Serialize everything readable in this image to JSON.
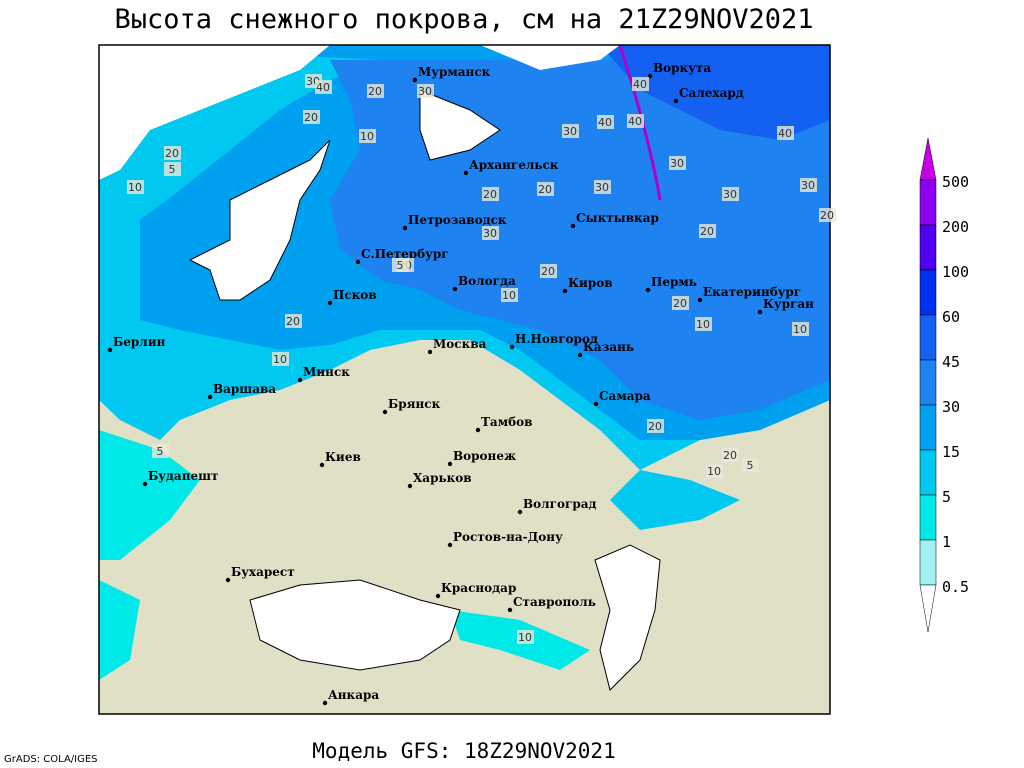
{
  "header": {
    "title": "Высота снежного покрова, см на 21Z29NOV2021"
  },
  "map": {
    "cities": [
      "Мурманск",
      "Воркута",
      "Салехард",
      "Архангельск",
      "Сыктывкар",
      "Петрозаводск",
      "С.Петербург",
      "Вологда",
      "Киров",
      "Пермь",
      "Екатеринбург",
      "Курган",
      "Псков",
      "Н.Новгород",
      "Казань",
      "Берлин",
      "Москва",
      "Минск",
      "Варшава",
      "Самара",
      "Брянск",
      "Тамбов",
      "Киев",
      "Воронеж",
      "Будапешт",
      "Харьков",
      "Волгоград",
      "Ростов-на-Дону",
      "Бухарест",
      "Краснодар",
      "Ставрополь",
      "Анкара"
    ],
    "contour_labels": [
      30,
      40,
      20,
      30,
      20,
      30,
      40,
      40,
      40,
      10,
      20,
      20,
      5,
      10,
      20,
      30,
      30,
      30,
      40,
      30,
      20,
      30,
      20,
      10,
      20,
      20,
      10,
      20,
      10,
      20,
      5,
      10,
      20,
      20,
      5,
      10,
      5,
      10
    ]
  },
  "legend": {
    "levels": [
      500,
      200,
      100,
      60,
      45,
      30,
      15,
      5,
      1,
      0.5
    ]
  },
  "footer": {
    "model": "Модель GFS: 18Z29NOV2021",
    "credit": "GrADS: COLA/IGES"
  }
}
